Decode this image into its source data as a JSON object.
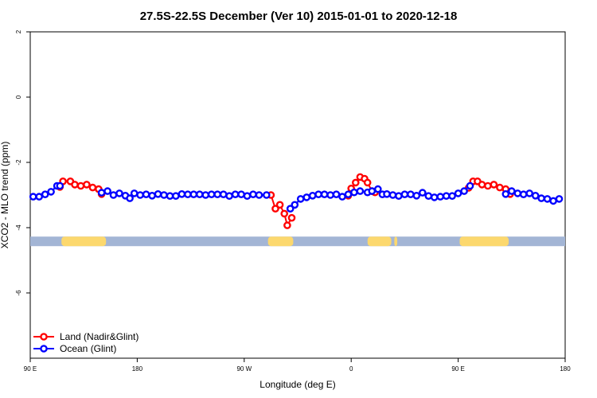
{
  "chart_data": {
    "type": "line",
    "title": "27.5S-22.5S December (Ver 10)   2015-01-01 to 2020-12-18",
    "xlabel": "Longitude (deg E)",
    "ylabel": "XCO2 - MLO trend (ppm)",
    "xlim": [
      90,
      450
    ],
    "ylim": [
      -8,
      2
    ],
    "x_ticks": [
      {
        "value": 90,
        "label": "90 E"
      },
      {
        "value": 162,
        "label": "180"
      },
      {
        "value": 234,
        "label": "90 W"
      },
      {
        "value": 306,
        "label": "0"
      },
      {
        "value": 378,
        "label": "90 E"
      },
      {
        "value": 450,
        "label": "180"
      }
    ],
    "y_ticks": [
      {
        "value": 2,
        "label": "2"
      },
      {
        "value": 0,
        "label": "0"
      },
      {
        "value": -2,
        "label": "-2"
      },
      {
        "value": -4,
        "label": "-4"
      },
      {
        "value": -6,
        "label": "-6"
      }
    ],
    "legend_position": "bottom-left",
    "series": [
      {
        "name": "Land (Nadir&Glint)",
        "color": "#ff0000",
        "segments": [
          [
            [
              110,
              -2.75
            ],
            [
              112,
              -2.58
            ],
            [
              117,
              -2.58
            ],
            [
              120,
              -2.68
            ],
            [
              124,
              -2.72
            ],
            [
              128,
              -2.68
            ],
            [
              132,
              -2.77
            ],
            [
              136,
              -2.82
            ],
            [
              138,
              -2.97
            ]
          ],
          [
            [
              252,
              -3.0
            ],
            [
              255,
              -3.42
            ],
            [
              258,
              -3.3
            ],
            [
              261,
              -3.57
            ],
            [
              263,
              -3.93
            ],
            [
              266,
              -3.7
            ]
          ],
          [
            [
              304,
              -3.02
            ],
            [
              306,
              -2.8
            ],
            [
              309,
              -2.62
            ],
            [
              312,
              -2.45
            ],
            [
              315,
              -2.5
            ],
            [
              317,
              -2.62
            ],
            [
              320,
              -2.88
            ],
            [
              322,
              -2.92
            ]
          ],
          [
            [
              385,
              -2.78
            ],
            [
              388,
              -2.58
            ],
            [
              391,
              -2.58
            ],
            [
              394,
              -2.68
            ],
            [
              398,
              -2.72
            ],
            [
              402,
              -2.68
            ],
            [
              406,
              -2.77
            ],
            [
              410,
              -2.82
            ],
            [
              413,
              -2.97
            ]
          ]
        ]
      },
      {
        "name": "Ocean (Glint)",
        "color": "#0000ff",
        "segments": [
          [
            [
              92,
              -3.05
            ],
            [
              96,
              -3.05
            ],
            [
              100,
              -2.98
            ],
            [
              104,
              -2.9
            ],
            [
              108,
              -2.72
            ],
            [
              110,
              -2.72
            ]
          ],
          [
            [
              138,
              -2.93
            ],
            [
              142,
              -2.88
            ],
            [
              146,
              -3.0
            ],
            [
              150,
              -2.95
            ],
            [
              154,
              -3.02
            ],
            [
              157,
              -3.1
            ],
            [
              160,
              -2.95
            ],
            [
              164,
              -3.0
            ],
            [
              168,
              -2.98
            ],
            [
              172,
              -3.02
            ],
            [
              176,
              -2.97
            ],
            [
              180,
              -3.0
            ],
            [
              184,
              -3.03
            ],
            [
              188,
              -3.03
            ],
            [
              192,
              -2.97
            ],
            [
              196,
              -2.98
            ],
            [
              200,
              -2.98
            ],
            [
              204,
              -2.98
            ],
            [
              208,
              -3.0
            ],
            [
              212,
              -2.98
            ],
            [
              216,
              -2.98
            ],
            [
              220,
              -2.98
            ],
            [
              224,
              -3.03
            ],
            [
              228,
              -2.98
            ],
            [
              232,
              -2.98
            ],
            [
              236,
              -3.03
            ],
            [
              240,
              -2.98
            ],
            [
              244,
              -3.0
            ],
            [
              249,
              -3.0
            ]
          ],
          [
            [
              265,
              -3.42
            ],
            [
              268,
              -3.3
            ],
            [
              272,
              -3.12
            ],
            [
              276,
              -3.07
            ],
            [
              280,
              -3.02
            ],
            [
              284,
              -2.98
            ],
            [
              288,
              -2.98
            ],
            [
              292,
              -3.0
            ],
            [
              296,
              -2.98
            ],
            [
              300,
              -3.05
            ],
            [
              304,
              -2.98
            ],
            [
              308,
              -2.92
            ],
            [
              312,
              -2.88
            ]
          ],
          [
            [
              317,
              -2.92
            ],
            [
              320,
              -2.88
            ],
            [
              324,
              -2.82
            ],
            [
              327,
              -2.98
            ],
            [
              330,
              -2.97
            ],
            [
              334,
              -3.0
            ],
            [
              338,
              -3.03
            ],
            [
              342,
              -2.98
            ],
            [
              346,
              -2.98
            ],
            [
              350,
              -3.02
            ],
            [
              354,
              -2.93
            ],
            [
              358,
              -3.03
            ],
            [
              362,
              -3.07
            ],
            [
              366,
              -3.05
            ],
            [
              370,
              -3.03
            ],
            [
              374,
              -3.03
            ],
            [
              378,
              -2.95
            ],
            [
              382,
              -2.88
            ],
            [
              386,
              -2.72
            ]
          ],
          [
            [
              410,
              -2.97
            ],
            [
              414,
              -2.88
            ],
            [
              418,
              -2.95
            ],
            [
              422,
              -2.98
            ],
            [
              426,
              -2.95
            ],
            [
              430,
              -3.02
            ],
            [
              434,
              -3.1
            ],
            [
              438,
              -3.12
            ],
            [
              442,
              -3.18
            ],
            [
              446,
              -3.12
            ]
          ]
        ]
      }
    ],
    "surface_strip": {
      "y_value": -4.42,
      "ocean_color": "#a3b5d5",
      "land_color": "#fcd86e",
      "land_ranges": [
        [
          111,
          141
        ],
        [
          250,
          267
        ],
        [
          317,
          333
        ],
        [
          335,
          337
        ],
        [
          379,
          412
        ]
      ]
    }
  }
}
